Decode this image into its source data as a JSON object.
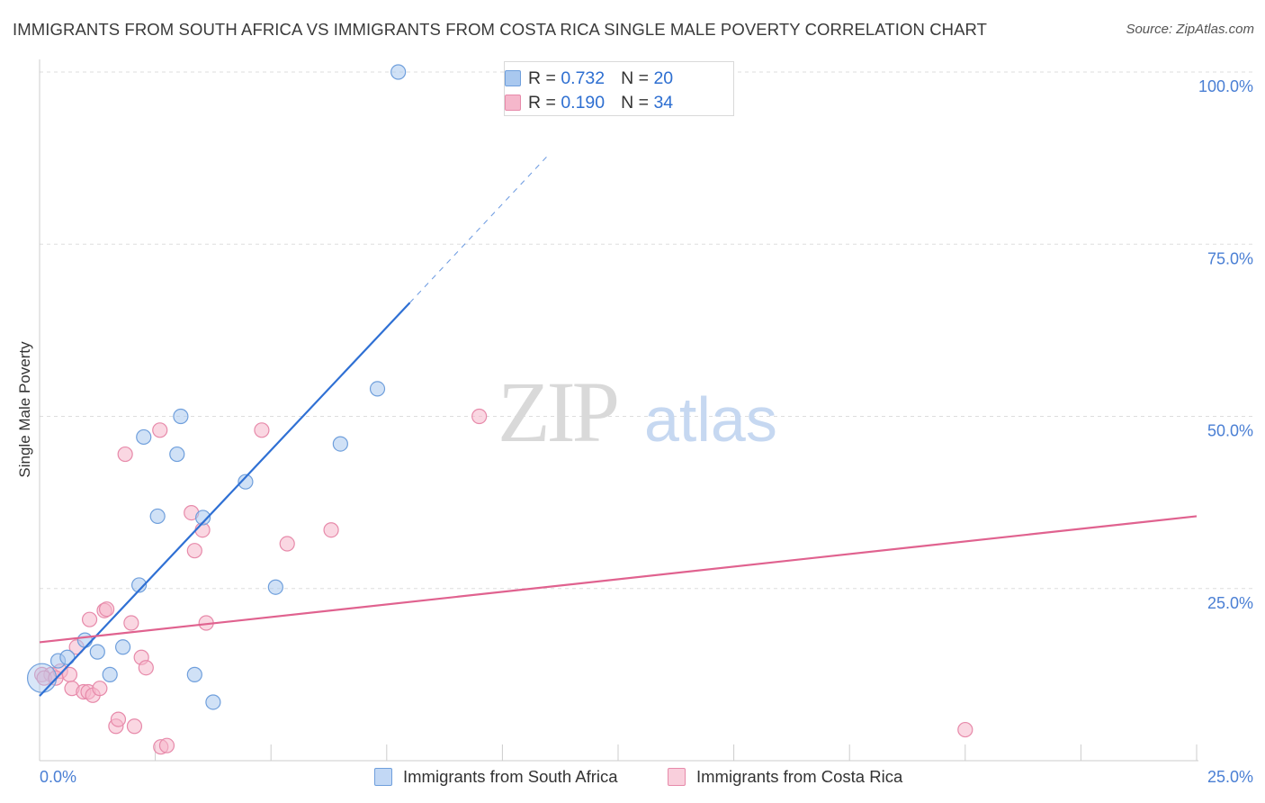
{
  "title": "IMMIGRANTS FROM SOUTH AFRICA VS IMMIGRANTS FROM COSTA RICA SINGLE MALE POVERTY CORRELATION CHART",
  "source": "Source: ZipAtlas.com",
  "colors": {
    "blue_point_fill": "#a9c8ef",
    "blue_point_stroke": "#6f9fdc",
    "blue_line": "#2f70d4",
    "pink_point_fill": "#f5b7cb",
    "pink_point_stroke": "#e78aaa",
    "pink_line": "#e0628f",
    "tick_text": "#4a7fd4",
    "grid": "#dddddd"
  },
  "legend_top": {
    "series1": {
      "r_label": "R = ",
      "r_value": "0.732",
      "n_label": "N = ",
      "n_value": "20"
    },
    "series2": {
      "r_label": "R = ",
      "r_value": "0.190",
      "n_label": "N = ",
      "n_value": "34"
    }
  },
  "legend_bottom": {
    "series1": "Immigrants from South Africa",
    "series2": "Immigrants from Costa Rica"
  },
  "watermark": {
    "part1": "ZIP",
    "part2": "atlas"
  },
  "chart_data": {
    "type": "scatter",
    "title": "IMMIGRANTS FROM SOUTH AFRICA VS IMMIGRANTS FROM COSTA RICA SINGLE MALE POVERTY CORRELATION CHART",
    "xlabel": "",
    "ylabel": "Single Male Poverty",
    "xlim": [
      0,
      25
    ],
    "ylim": [
      0,
      100
    ],
    "x_tick_labels": [
      "0.0%",
      "25.0%"
    ],
    "y_ticks": [
      25,
      50,
      75,
      100
    ],
    "y_tick_labels": [
      "25.0%",
      "50.0%",
      "75.0%",
      "100.0%"
    ],
    "grid": true,
    "series": [
      {
        "name": "Immigrants from South Africa",
        "R": 0.732,
        "N": 20,
        "points": [
          [
            0.05,
            12.0
          ],
          [
            0.4,
            14.5
          ],
          [
            0.6,
            15.0
          ],
          [
            0.98,
            17.5
          ],
          [
            1.25,
            15.8
          ],
          [
            1.52,
            12.5
          ],
          [
            1.8,
            16.5
          ],
          [
            2.15,
            25.5
          ],
          [
            2.25,
            47.0
          ],
          [
            2.55,
            35.5
          ],
          [
            2.97,
            44.5
          ],
          [
            3.05,
            50.0
          ],
          [
            3.35,
            12.5
          ],
          [
            3.53,
            35.3
          ],
          [
            3.75,
            8.5
          ],
          [
            4.45,
            40.5
          ],
          [
            5.1,
            25.2
          ],
          [
            6.5,
            46.0
          ],
          [
            7.3,
            54.0
          ],
          [
            7.75,
            100.0
          ]
        ],
        "trend": {
          "x_start": 0.0,
          "y_start": 9.4,
          "x_end": 8.0,
          "y_end": 66.5,
          "dash_to_x": 11.0,
          "dash_to_y": 88.0
        }
      },
      {
        "name": "Immigrants from Costa Rica",
        "R": 0.19,
        "N": 34,
        "points": [
          [
            0.05,
            12.5
          ],
          [
            0.25,
            12.5
          ],
          [
            0.45,
            13.0
          ],
          [
            0.65,
            12.5
          ],
          [
            0.7,
            10.5
          ],
          [
            0.8,
            16.5
          ],
          [
            0.95,
            10.0
          ],
          [
            1.05,
            10.0
          ],
          [
            1.08,
            20.5
          ],
          [
            1.15,
            9.5
          ],
          [
            1.3,
            10.5
          ],
          [
            1.4,
            21.8
          ],
          [
            1.45,
            22.0
          ],
          [
            1.65,
            5.0
          ],
          [
            1.7,
            6.0
          ],
          [
            1.85,
            44.5
          ],
          [
            1.98,
            20.0
          ],
          [
            2.05,
            5.0
          ],
          [
            2.2,
            15.0
          ],
          [
            2.3,
            13.5
          ],
          [
            2.6,
            48.0
          ],
          [
            2.62,
            2.0
          ],
          [
            2.75,
            2.2
          ],
          [
            3.28,
            36.0
          ],
          [
            3.35,
            30.5
          ],
          [
            3.52,
            33.5
          ],
          [
            3.6,
            20.0
          ],
          [
            4.8,
            48.0
          ],
          [
            5.35,
            31.5
          ],
          [
            6.3,
            33.5
          ],
          [
            9.5,
            50.0
          ],
          [
            20.0,
            4.5
          ],
          [
            0.1,
            12.0
          ],
          [
            0.35,
            12.0
          ]
        ],
        "trend": {
          "x_start": 0.0,
          "y_start": 17.2,
          "x_end": 25.0,
          "y_end": 35.5
        }
      }
    ]
  }
}
